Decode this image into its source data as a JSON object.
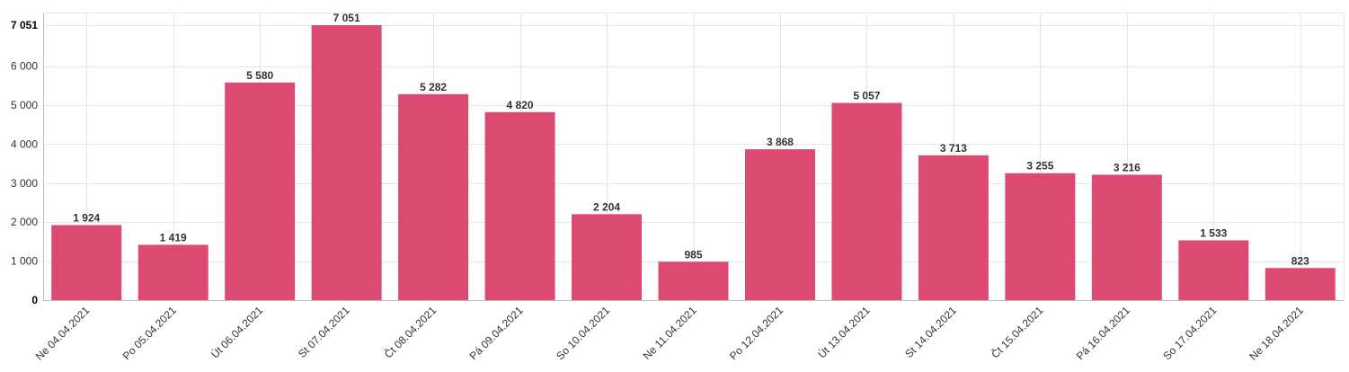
{
  "chart_data": {
    "type": "bar",
    "categories": [
      "Ne 04.04.2021",
      "Po 05.04.2021",
      "Út 06.04.2021",
      "St 07.04.2021",
      "Čt 08.04.2021",
      "Pá 09.04.2021",
      "So 10.04.2021",
      "Ne 11.04.2021",
      "Po 12.04.2021",
      "Út 13.04.2021",
      "St 14.04.2021",
      "Čt 15.04.2021",
      "Pá 16.04.2021",
      "So 17.04.2021",
      "Ne 18.04.2021"
    ],
    "values": [
      1924,
      1419,
      5580,
      7051,
      5282,
      4820,
      2204,
      985,
      3868,
      5057,
      3713,
      3255,
      3216,
      1533,
      823
    ],
    "value_labels": [
      "1 924",
      "1 419",
      "5 580",
      "7 051",
      "5 282",
      "4 820",
      "2 204",
      "985",
      "3 868",
      "5 057",
      "3 713",
      "3 255",
      "3 216",
      "1 533",
      "823"
    ],
    "y_ticks": [
      0,
      1000,
      2000,
      3000,
      4000,
      5000,
      6000,
      7051
    ],
    "y_tick_labels": [
      "0",
      "1 000",
      "2 000",
      "3 000",
      "4 000",
      "5 000",
      "6 000",
      "7 051"
    ],
    "highlighted_y_ticks": [
      "0",
      "7 051"
    ],
    "ylim": [
      0,
      7051
    ],
    "title": "",
    "xlabel": "",
    "ylabel": "",
    "grid": true,
    "legend": "none",
    "bar_color": "#dc4a72",
    "grid_color": "#e6e6e6"
  }
}
